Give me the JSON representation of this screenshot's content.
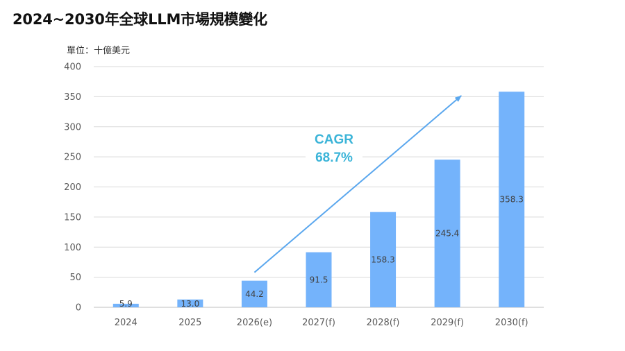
{
  "chart_data": {
    "type": "bar",
    "title": "2024~2030年全球LLM市場規模變化",
    "unit_label": "單位：十億美元",
    "categories": [
      "2024",
      "2025",
      "2026(e)",
      "2027(f)",
      "2028(f)",
      "2029(f)",
      "2030(f)"
    ],
    "values": [
      5.9,
      13.0,
      44.2,
      91.5,
      158.3,
      245.4,
      358.3
    ],
    "value_labels": [
      "5.9",
      "13.0",
      "44.2",
      "91.5",
      "158.3",
      "245.4",
      "358.3"
    ],
    "ylim": [
      0,
      400
    ],
    "yticks": [
      0,
      50,
      100,
      150,
      200,
      250,
      300,
      350,
      400
    ],
    "grid": true,
    "annotation": {
      "title": "CAGR",
      "value": "68.7%",
      "arrow_from": {
        "category": "2026(e)",
        "value": 58
      },
      "arrow_to": {
        "category": "2029(f)",
        "value": 355
      }
    },
    "colors": {
      "bar": "#74b3fb",
      "grid": "#d9d9d9",
      "arrow": "#5aa7ee",
      "annotation": "#3bb4d8"
    }
  }
}
